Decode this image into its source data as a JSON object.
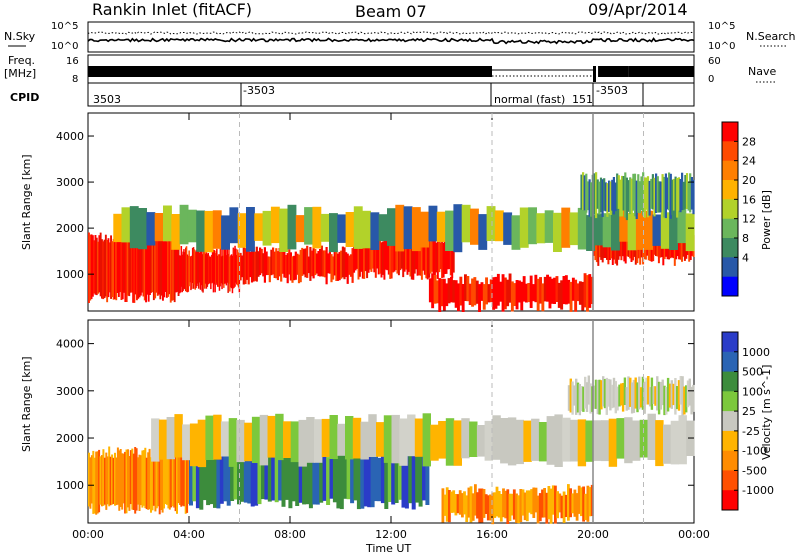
{
  "header": {
    "station": "Rankin Inlet (fitACF)",
    "beam": "Beam 07",
    "date": "09/Apr/2014"
  },
  "status_panel": {
    "left_label": "N.Sky",
    "left_ticks": [
      "10^5",
      "10^0"
    ],
    "right_label": "N.Search",
    "right_ticks": [
      "10^5",
      "10^0"
    ],
    "freq_label_1": "Freq.",
    "freq_label_2": "[MHz]",
    "freq_ticks": [
      "16",
      "8"
    ],
    "nave_label": "Nave",
    "nave_ticks": [
      "60",
      "0"
    ],
    "cpid_label": "CPID",
    "cpid_entries": [
      "3503",
      "-3503",
      "normal (fast)",
      "151",
      "-3503"
    ]
  },
  "chart_data": [
    {
      "type": "heatmap",
      "panel": "power",
      "ylabel": "Slant Range [km]",
      "yticks": [
        "4000",
        "3000",
        "2000",
        "1000"
      ],
      "ylim": [
        200,
        4500
      ],
      "colorbar_label": "Power [dB]",
      "colorbar_ticks": [
        "28",
        "24",
        "20",
        "16",
        "12",
        "8",
        "4"
      ],
      "colorbar_colors": [
        "#ff0000",
        "#ff4a00",
        "#ff7f00",
        "#ffb200",
        "#b2d22a",
        "#6bb65c",
        "#3d8a60",
        "#2858a8",
        "#0000ff"
      ],
      "regions": [
        {
          "t0": 0.0,
          "t1": 3.6,
          "r0": 500,
          "r1": 1800,
          "level": "high"
        },
        {
          "t0": 3.6,
          "t1": 6.0,
          "r0": 700,
          "r1": 1500,
          "level": "high"
        },
        {
          "t0": 6.0,
          "t1": 10.5,
          "r0": 900,
          "r1": 1500,
          "level": "high"
        },
        {
          "t0": 10.5,
          "t1": 14.5,
          "r0": 1000,
          "r1": 1800,
          "level": "high"
        },
        {
          "t0": 13.5,
          "t1": 20.0,
          "r0": 300,
          "r1": 900,
          "level": "high"
        },
        {
          "t0": 20.0,
          "t1": 24.0,
          "r0": 1300,
          "r1": 1800,
          "level": "high"
        },
        {
          "t0": 1.0,
          "t1": 24.0,
          "r0": 1600,
          "r1": 2400,
          "level": "mid"
        },
        {
          "t0": 19.5,
          "t1": 24.0,
          "r0": 2300,
          "r1": 3100,
          "level": "low"
        }
      ]
    },
    {
      "type": "heatmap",
      "panel": "velocity",
      "ylabel": "Slant Range [km]",
      "yticks": [
        "4000",
        "3000",
        "2000",
        "1000"
      ],
      "ylim": [
        200,
        4500
      ],
      "xlabel": "Time UT",
      "xticks": [
        "00:00",
        "04:00",
        "08:00",
        "12:00",
        "16:00",
        "20:00",
        "00:00"
      ],
      "xlim": [
        0,
        24
      ],
      "colorbar_label": "Velocity [m s^-1]",
      "colorbar_ticks": [
        "1000",
        "500",
        "100",
        "25",
        "-25",
        "-100",
        "-500",
        "-1000"
      ],
      "colorbar_colors": [
        "#2a3cc8",
        "#2a64b4",
        "#3c8c3c",
        "#7cc83c",
        "#c8c8c0",
        "#ffb400",
        "#ff8c00",
        "#ff5000",
        "#ff0000"
      ],
      "regions": [
        {
          "t0": 0.0,
          "t1": 4.0,
          "r0": 500,
          "r1": 1700,
          "level": "negative"
        },
        {
          "t0": 4.0,
          "t1": 13.5,
          "r0": 600,
          "r1": 1700,
          "level": "positive"
        },
        {
          "t0": 14.0,
          "t1": 20.0,
          "r0": 300,
          "r1": 900,
          "level": "negative"
        },
        {
          "t0": 2.5,
          "t1": 24.0,
          "r0": 1500,
          "r1": 2400,
          "level": "zero"
        },
        {
          "t0": 19.0,
          "t1": 24.0,
          "r0": 2600,
          "r1": 3200,
          "level": "zero"
        }
      ]
    }
  ]
}
